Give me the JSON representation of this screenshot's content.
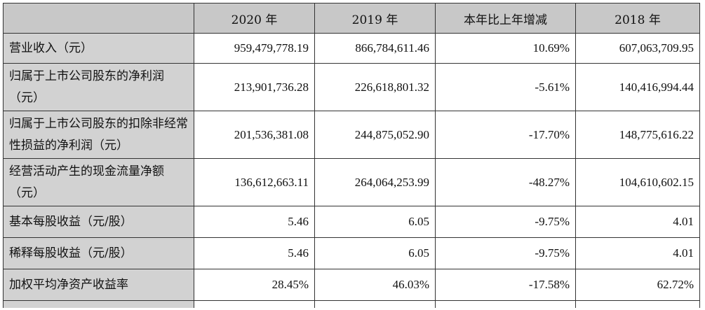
{
  "header": {
    "col0": "",
    "col1": "2020 年",
    "col2": "2019 年",
    "col3": "本年比上年增减",
    "col4": "2018 年"
  },
  "rows": [
    {
      "label": "营业收入（元）",
      "v2020": "959,479,778.19",
      "v2019": "866,784,611.46",
      "change": "10.69%",
      "v2018": "607,063,709.95"
    },
    {
      "label": "归属于上市公司股东的净利润（元）",
      "v2020": "213,901,736.28",
      "v2019": "226,618,801.32",
      "change": "-5.61%",
      "v2018": "140,416,994.44"
    },
    {
      "label": "归属于上市公司股东的扣除非经常性损益的净利润（元）",
      "v2020": "201,536,381.08",
      "v2019": "244,875,052.90",
      "change": "-17.70%",
      "v2018": "148,775,616.22"
    },
    {
      "label": "经营活动产生的现金流量净额（元）",
      "v2020": "136,612,663.11",
      "v2019": "264,064,253.99",
      "change": "-48.27%",
      "v2018": "104,610,602.15"
    },
    {
      "label": "基本每股收益（元/股）",
      "v2020": "5.46",
      "v2019": "6.05",
      "change": "-9.75%",
      "v2018": "4.01"
    },
    {
      "label": "稀释每股收益（元/股）",
      "v2020": "5.46",
      "v2019": "6.05",
      "change": "-9.75%",
      "v2018": "4.01"
    },
    {
      "label": "加权平均净资产收益率",
      "v2020": "28.45%",
      "v2019": "46.03%",
      "change": "-17.58%",
      "v2018": "62.72%"
    }
  ]
}
